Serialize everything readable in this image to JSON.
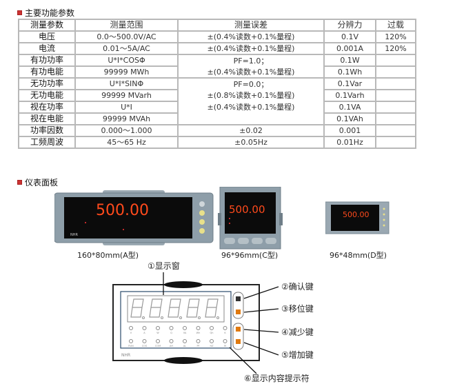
{
  "section1": {
    "title": "主要功能参数"
  },
  "table": {
    "headers": [
      "测量参数",
      "测量范围",
      "测量误差",
      "分辨力",
      "过载"
    ],
    "rows": [
      {
        "param": "电压",
        "range": "0.0～500.0V/AC",
        "error": "±(0.4%读数+0.1%量程)",
        "res": "0.1V",
        "overload": "120%"
      },
      {
        "param": "电流",
        "range": "0.01～5A/AC",
        "error": "±(0.4%读数+0.1%量程)",
        "res": "0.001A",
        "overload": "120%"
      },
      {
        "param": "有功功率",
        "range": "U*I*COSΦ",
        "error": "PF=1.0；",
        "res": "0.1W",
        "overload": ""
      },
      {
        "param": "有功电能",
        "range": "99999 MWh",
        "error": "±(0.4%读数+0.1%量程)",
        "res": "0.1Wh",
        "overload": ""
      },
      {
        "param": "无功功率",
        "range": "U*I*SINΦ",
        "error": "PF=0.0；",
        "res": "0.1Var",
        "overload": ""
      },
      {
        "param": "无功电能",
        "range": "99999 MVarh",
        "error": "±(0.8%读数+0.1%量程)",
        "res": "0.1Varh",
        "overload": ""
      },
      {
        "param": "视在功率",
        "range": "U*I",
        "error": "±(0.4%读数+0.1%量程)",
        "res": "0.1VA",
        "overload": ""
      },
      {
        "param": "视在电能",
        "range": "99999 MVAh",
        "error": "",
        "res": "0.1VAh",
        "overload": ""
      },
      {
        "param": "功率因数",
        "range": "0.000～1.000",
        "error": "±0.02",
        "res": "0.001",
        "overload": ""
      },
      {
        "param": "工频周波",
        "range": "45～65 Hz",
        "error": "±0.05Hz",
        "res": "0.01Hz",
        "overload": ""
      }
    ]
  },
  "section2": {
    "title": "仪表面板"
  },
  "meters": [
    {
      "caption": "160*80mm(A型)",
      "display": "500.00"
    },
    {
      "caption": "96*96mm(C型)",
      "display": "500.00"
    },
    {
      "caption": "96*48mm(D型)",
      "display": "500.00"
    }
  ],
  "diagram": {
    "labels": [
      "①显示窗",
      "②确认键",
      "③移位键",
      "④减少键",
      "⑤增加键",
      "⑥显示内容提示符"
    ],
    "indicators_row1": [
      "V",
      "A",
      "W",
      "Q",
      "VA",
      "Wh",
      "Qh",
      "K"
    ],
    "indicators_row2": [
      "RUN",
      "COS",
      "COM",
      "AH",
      "AL",
      "PF",
      "HZ",
      "M"
    ],
    "brand": "NHR"
  },
  "colors": {
    "bullet": "#cc3333",
    "segment": "#ff4a1c",
    "bezel": "#8a9aa6",
    "border": "#b8b8b8"
  }
}
